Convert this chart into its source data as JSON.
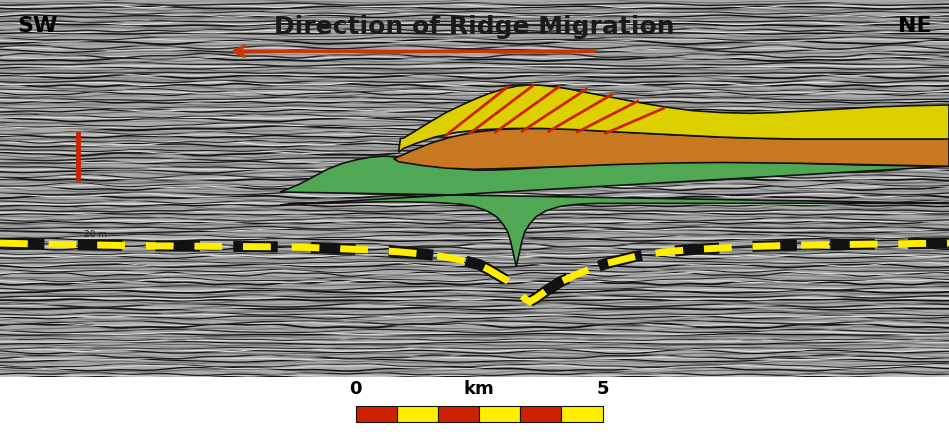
{
  "title": "Direction of Ridge Migration",
  "title_fontsize": 18,
  "title_color": "#1a1a1a",
  "sw_label": "SW",
  "ne_label": "NE",
  "label_fontsize": 16,
  "arrow_color": "#cc3300",
  "yellow_layer_color": "#ddd000",
  "orange_layer_color": "#c87820",
  "green_layer_color": "#50a855",
  "red_line_color": "#cc2200",
  "yellow_dot_color": "#ffee00",
  "vertical_bar_color": "#cc2200",
  "scale_fontsize": 13
}
